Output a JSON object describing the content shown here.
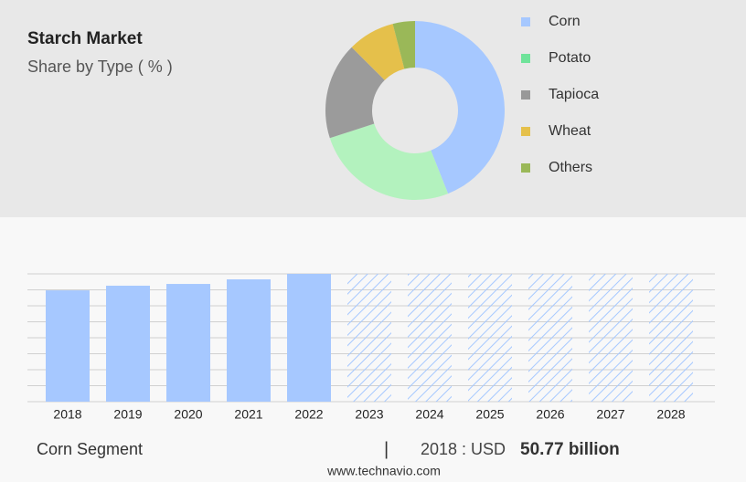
{
  "header": {
    "title": "Starch Market",
    "subtitle": "Share by Type ( % )"
  },
  "chart_data": [
    {
      "type": "pie",
      "categories": [
        "Corn",
        "Potato",
        "Tapioca",
        "Wheat",
        "Others"
      ],
      "values": [
        44,
        26,
        17.5,
        8.5,
        4
      ],
      "colors": [
        "#a6c8ff",
        "#b3f2be",
        "#9b9b9b",
        "#e5c04b",
        "#9ab858"
      ],
      "legend_colors": [
        "#a6c8ff",
        "#6fe39a",
        "#999999",
        "#e5c04b",
        "#9ab858"
      ]
    },
    {
      "type": "bar",
      "categories": [
        "2018",
        "2019",
        "2020",
        "2021",
        "2022",
        "2023",
        "2024",
        "2025",
        "2026",
        "2027",
        "2028"
      ],
      "values": [
        50.77,
        52.9,
        53.7,
        55.8,
        58.3,
        null,
        null,
        null,
        null,
        null,
        null
      ],
      "color": "#a6c8ff",
      "ylim": [
        0,
        58.3
      ]
    }
  ],
  "footer": {
    "segment": "Corn Segment",
    "separator": "|",
    "year_label": "2018 : USD",
    "value": "50.77 billion",
    "source": "www.technavio.com"
  }
}
